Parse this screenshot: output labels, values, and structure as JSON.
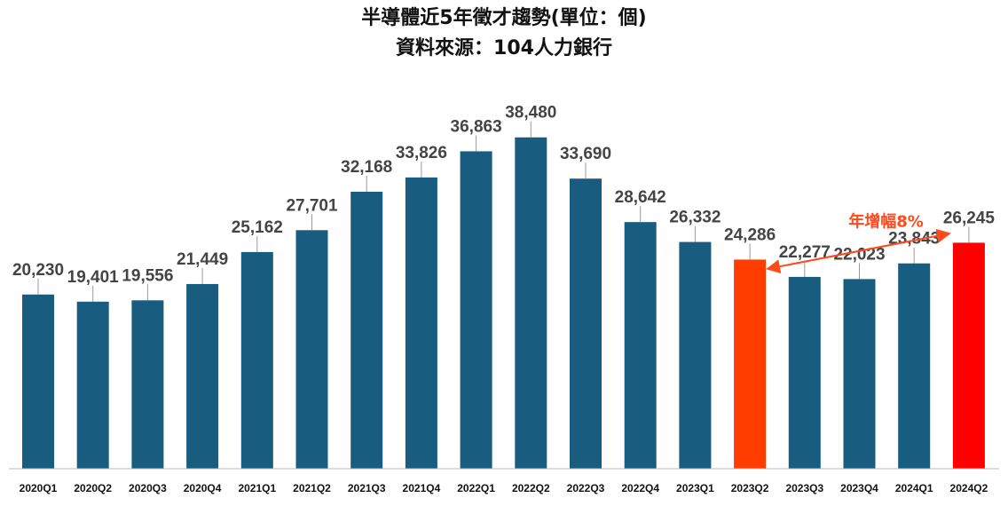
{
  "chart_data": {
    "type": "bar",
    "title": "半導體近5年徵才趨勢(單位：個)",
    "subtitle": "資料來源：104人力銀行",
    "categories": [
      "2020Q1",
      "2020Q2",
      "2020Q3",
      "2020Q4",
      "2021Q1",
      "2021Q2",
      "2021Q3",
      "2021Q4",
      "2022Q1",
      "2022Q2",
      "2022Q3",
      "2022Q4",
      "2023Q1",
      "2023Q2",
      "2023Q3",
      "2023Q4",
      "2024Q1",
      "2024Q2"
    ],
    "values": [
      20230,
      19401,
      19556,
      21449,
      25162,
      27701,
      32168,
      33826,
      36863,
      38480,
      33690,
      28642,
      26332,
      24286,
      22277,
      22023,
      23843,
      26245
    ],
    "value_labels": [
      "20,230",
      "19,401",
      "19,556",
      "21,449",
      "25,162",
      "27,701",
      "32,168",
      "33,826",
      "36,863",
      "38,480",
      "33,690",
      "28,642",
      "26,332",
      "24,286",
      "22,277",
      "22,023",
      "23,843",
      "26,245"
    ],
    "ylim": [
      0,
      40000
    ],
    "grid": false,
    "colors": {
      "default": "#185d80",
      "highlight_2023Q2": "#ff3d00",
      "highlight_2024Q2": "#ff0000",
      "annotation": "#ff4a1c"
    },
    "highlighted": [
      "2023Q2",
      "2024Q2"
    ],
    "annotation": {
      "text": "年增幅8%",
      "from": "2023Q2",
      "to": "2024Q2"
    }
  }
}
